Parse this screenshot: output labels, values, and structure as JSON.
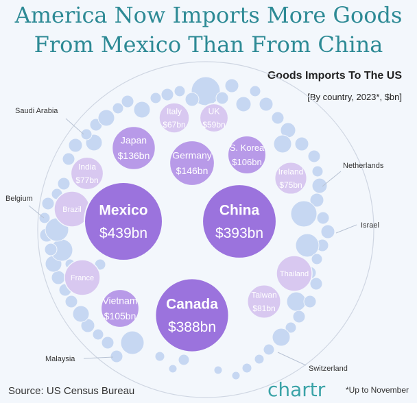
{
  "title_line1": "America Now Imports More Goods",
  "title_line2": "From Mexico Than From China",
  "subtitle": "Goods Imports To The US",
  "subtitle2": "[By country, 2023*, $bn]",
  "source": "Source: US Census Bureau",
  "note": "*Up to November",
  "logo": "chartr",
  "colors": {
    "big": "#9b73dd",
    "mid": "#b89ae8",
    "small": "#d8c8f0",
    "tiny": "#c6d7f2",
    "text_dark": "#ffffff"
  },
  "chart_data": {
    "type": "bubble",
    "title": "Goods Imports To The US",
    "subtitle": "[By country, 2023*, $bn]",
    "labeled": [
      {
        "name": "Mexico",
        "label": "$439bn",
        "value": 439
      },
      {
        "name": "China",
        "label": "$393bn",
        "value": 393
      },
      {
        "name": "Canada",
        "label": "$388bn",
        "value": 388
      },
      {
        "name": "Germany",
        "label": "$146bn",
        "value": 146
      },
      {
        "name": "Japan",
        "label": "$136bn",
        "value": 136
      },
      {
        "name": "S. Korea",
        "label": "$106bn",
        "value": 106
      },
      {
        "name": "Vietnam",
        "label": "$105bn",
        "value": 105
      },
      {
        "name": "Taiwan",
        "label": "$81bn",
        "value": 81
      },
      {
        "name": "India",
        "label": "$77bn",
        "value": 77
      },
      {
        "name": "Ireland",
        "label": "$75bn",
        "value": 75
      },
      {
        "name": "Italy",
        "label": "$67bn",
        "value": 67
      },
      {
        "name": "UK",
        "label": "$59bn",
        "value": 59
      }
    ],
    "name_only": [
      "Brazil",
      "France",
      "Thailand"
    ],
    "callouts": [
      "Saudi Arabia",
      "Netherlands",
      "Belgium",
      "Israel",
      "Malaysia",
      "Switzerland"
    ]
  }
}
